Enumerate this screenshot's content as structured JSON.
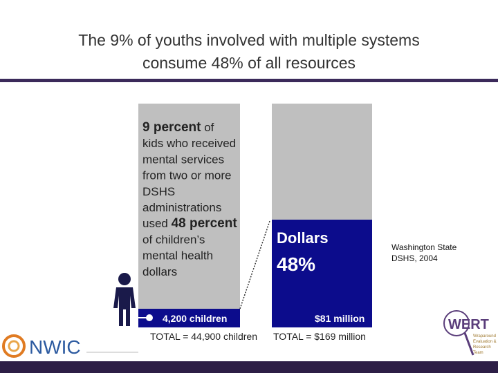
{
  "header": {
    "title_lines": [
      "The 9% of youths involved with multiple systems",
      "consume 48% of all resources"
    ]
  },
  "left_panel": {
    "lines": [
      [
        {
          "text": "9 percent",
          "bold": true
        },
        {
          "text": " of",
          "bold": false
        }
      ],
      [
        {
          "text": "kids who received",
          "bold": false
        }
      ],
      [
        {
          "text": "mental services",
          "bold": false
        }
      ],
      [
        {
          "text": "from two or more",
          "bold": false
        }
      ],
      [
        {
          "text": "DSHS",
          "bold": false
        }
      ],
      [
        {
          "text": "administrations",
          "bold": false
        }
      ],
      [
        {
          "text": "used ",
          "bold": false
        },
        {
          "text": "48 percent",
          "bold": true
        }
      ],
      [
        {
          "text": "of children’s",
          "bold": false
        }
      ],
      [
        {
          "text": "mental health",
          "bold": false
        }
      ],
      [
        {
          "text": "dollars",
          "bold": false
        }
      ]
    ],
    "segment_label": "4,200 children",
    "total": "TOTAL = 44,900 children"
  },
  "right_panel": {
    "label": "Dollars",
    "percent": "48%",
    "amount": "$81 million",
    "total": "TOTAL = $169 million"
  },
  "citation": [
    "Washington State",
    "DSHS, 2004"
  ],
  "logos": {
    "left": "NWIC",
    "right": "WERT",
    "right_sub": [
      "Wraparound",
      "Evaluation &",
      "Research",
      "Team"
    ]
  }
}
